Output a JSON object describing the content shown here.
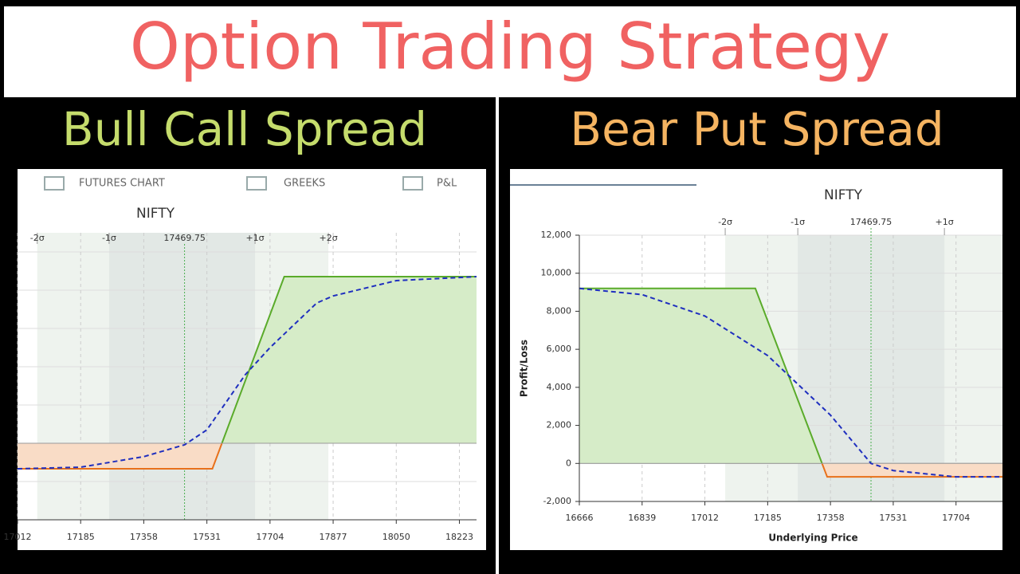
{
  "title": "Option Trading Strategy",
  "chart_data": [
    {
      "type": "line",
      "title": "Bull Call Spread",
      "subtitle": "NIFTY",
      "tabs": [
        "FUTURES CHART",
        "GREEKS",
        "P&L"
      ],
      "xlim": [
        17012,
        18270
      ],
      "xticks": [
        17012,
        17185,
        17358,
        17531,
        17704,
        17877,
        18050,
        18223
      ],
      "ylim": [
        -4000,
        11000
      ],
      "yticks": [
        -2000,
        0,
        2000,
        4000,
        6000,
        8000,
        10000
      ],
      "ytick_labels": false,
      "grid": true,
      "sigma_lines": [
        {
          "value": 17066,
          "label": "-2σ"
        },
        {
          "value": 17263,
          "label": "-1σ"
        },
        17469.75,
        {
          "value": 17663,
          "label": "+1σ"
        },
        {
          "value": 17864,
          "label": "+2σ"
        }
      ],
      "profit_color": "#d6ecc8",
      "loss_color": "#f9dcc6",
      "loss_line_color": "#e8701a",
      "series": [
        {
          "color": "#5aab2a",
          "style": "solid",
          "x": [
            17012,
            17546,
            17743,
            18270
          ],
          "values": [
            -1333,
            -1333,
            8708,
            8708
          ]
        },
        {
          "color": "#1f2fbf",
          "style": "dashed",
          "x": [
            17012,
            17185,
            17358,
            17469.75,
            17531,
            17636,
            17704,
            17832,
            17877,
            18050,
            18270
          ],
          "values": [
            -1333,
            -1250,
            -700,
            -80,
            700,
            3580,
            5000,
            7330,
            7700,
            8500,
            8708
          ]
        }
      ]
    },
    {
      "type": "line",
      "title": "Bear Put Spread",
      "subtitle": "NIFTY",
      "x_label": "Underlying Price",
      "y_label": "Profit/Loss",
      "xlim": [
        16666,
        17832
      ],
      "xticks": [
        16666,
        16839,
        17012,
        17185,
        17358,
        17531,
        17704
      ],
      "ylim": [
        -2000,
        12000
      ],
      "yticks": [
        {
          "value": -2000,
          "label": "-2,000"
        },
        0,
        {
          "value": 2000,
          "label": "2,000"
        },
        {
          "value": 4000,
          "label": "4,000"
        },
        {
          "value": 6000,
          "label": "6,000"
        },
        {
          "value": 8000,
          "label": "8,000"
        },
        {
          "value": 10000,
          "label": "10,000"
        },
        {
          "value": 12000,
          "label": "12,000"
        }
      ],
      "ytick_labels": true,
      "grid": true,
      "sigma_lines": [
        {
          "value": 17068,
          "label": "-2σ"
        },
        {
          "value": 17268,
          "label": "-1σ"
        },
        17469.75,
        {
          "value": 17672,
          "label": "+1σ"
        }
      ],
      "profit_color": "#d6ecc8",
      "loss_color": "#f9dcc6",
      "loss_line_color": "#e8701a",
      "series": [
        {
          "color": "#5aab2a",
          "style": "solid",
          "x": [
            16666,
            17151,
            17349,
            17832
          ],
          "values": [
            9200,
            9200,
            -708,
            -708
          ]
        },
        {
          "color": "#1f2fbf",
          "style": "dashed",
          "x": [
            16666,
            16839,
            17012,
            17185,
            17358,
            17469.75,
            17531,
            17704,
            17832
          ],
          "values": [
            9200,
            8875,
            7750,
            5670,
            2540,
            0,
            -375,
            -708,
            -708
          ]
        }
      ]
    }
  ]
}
